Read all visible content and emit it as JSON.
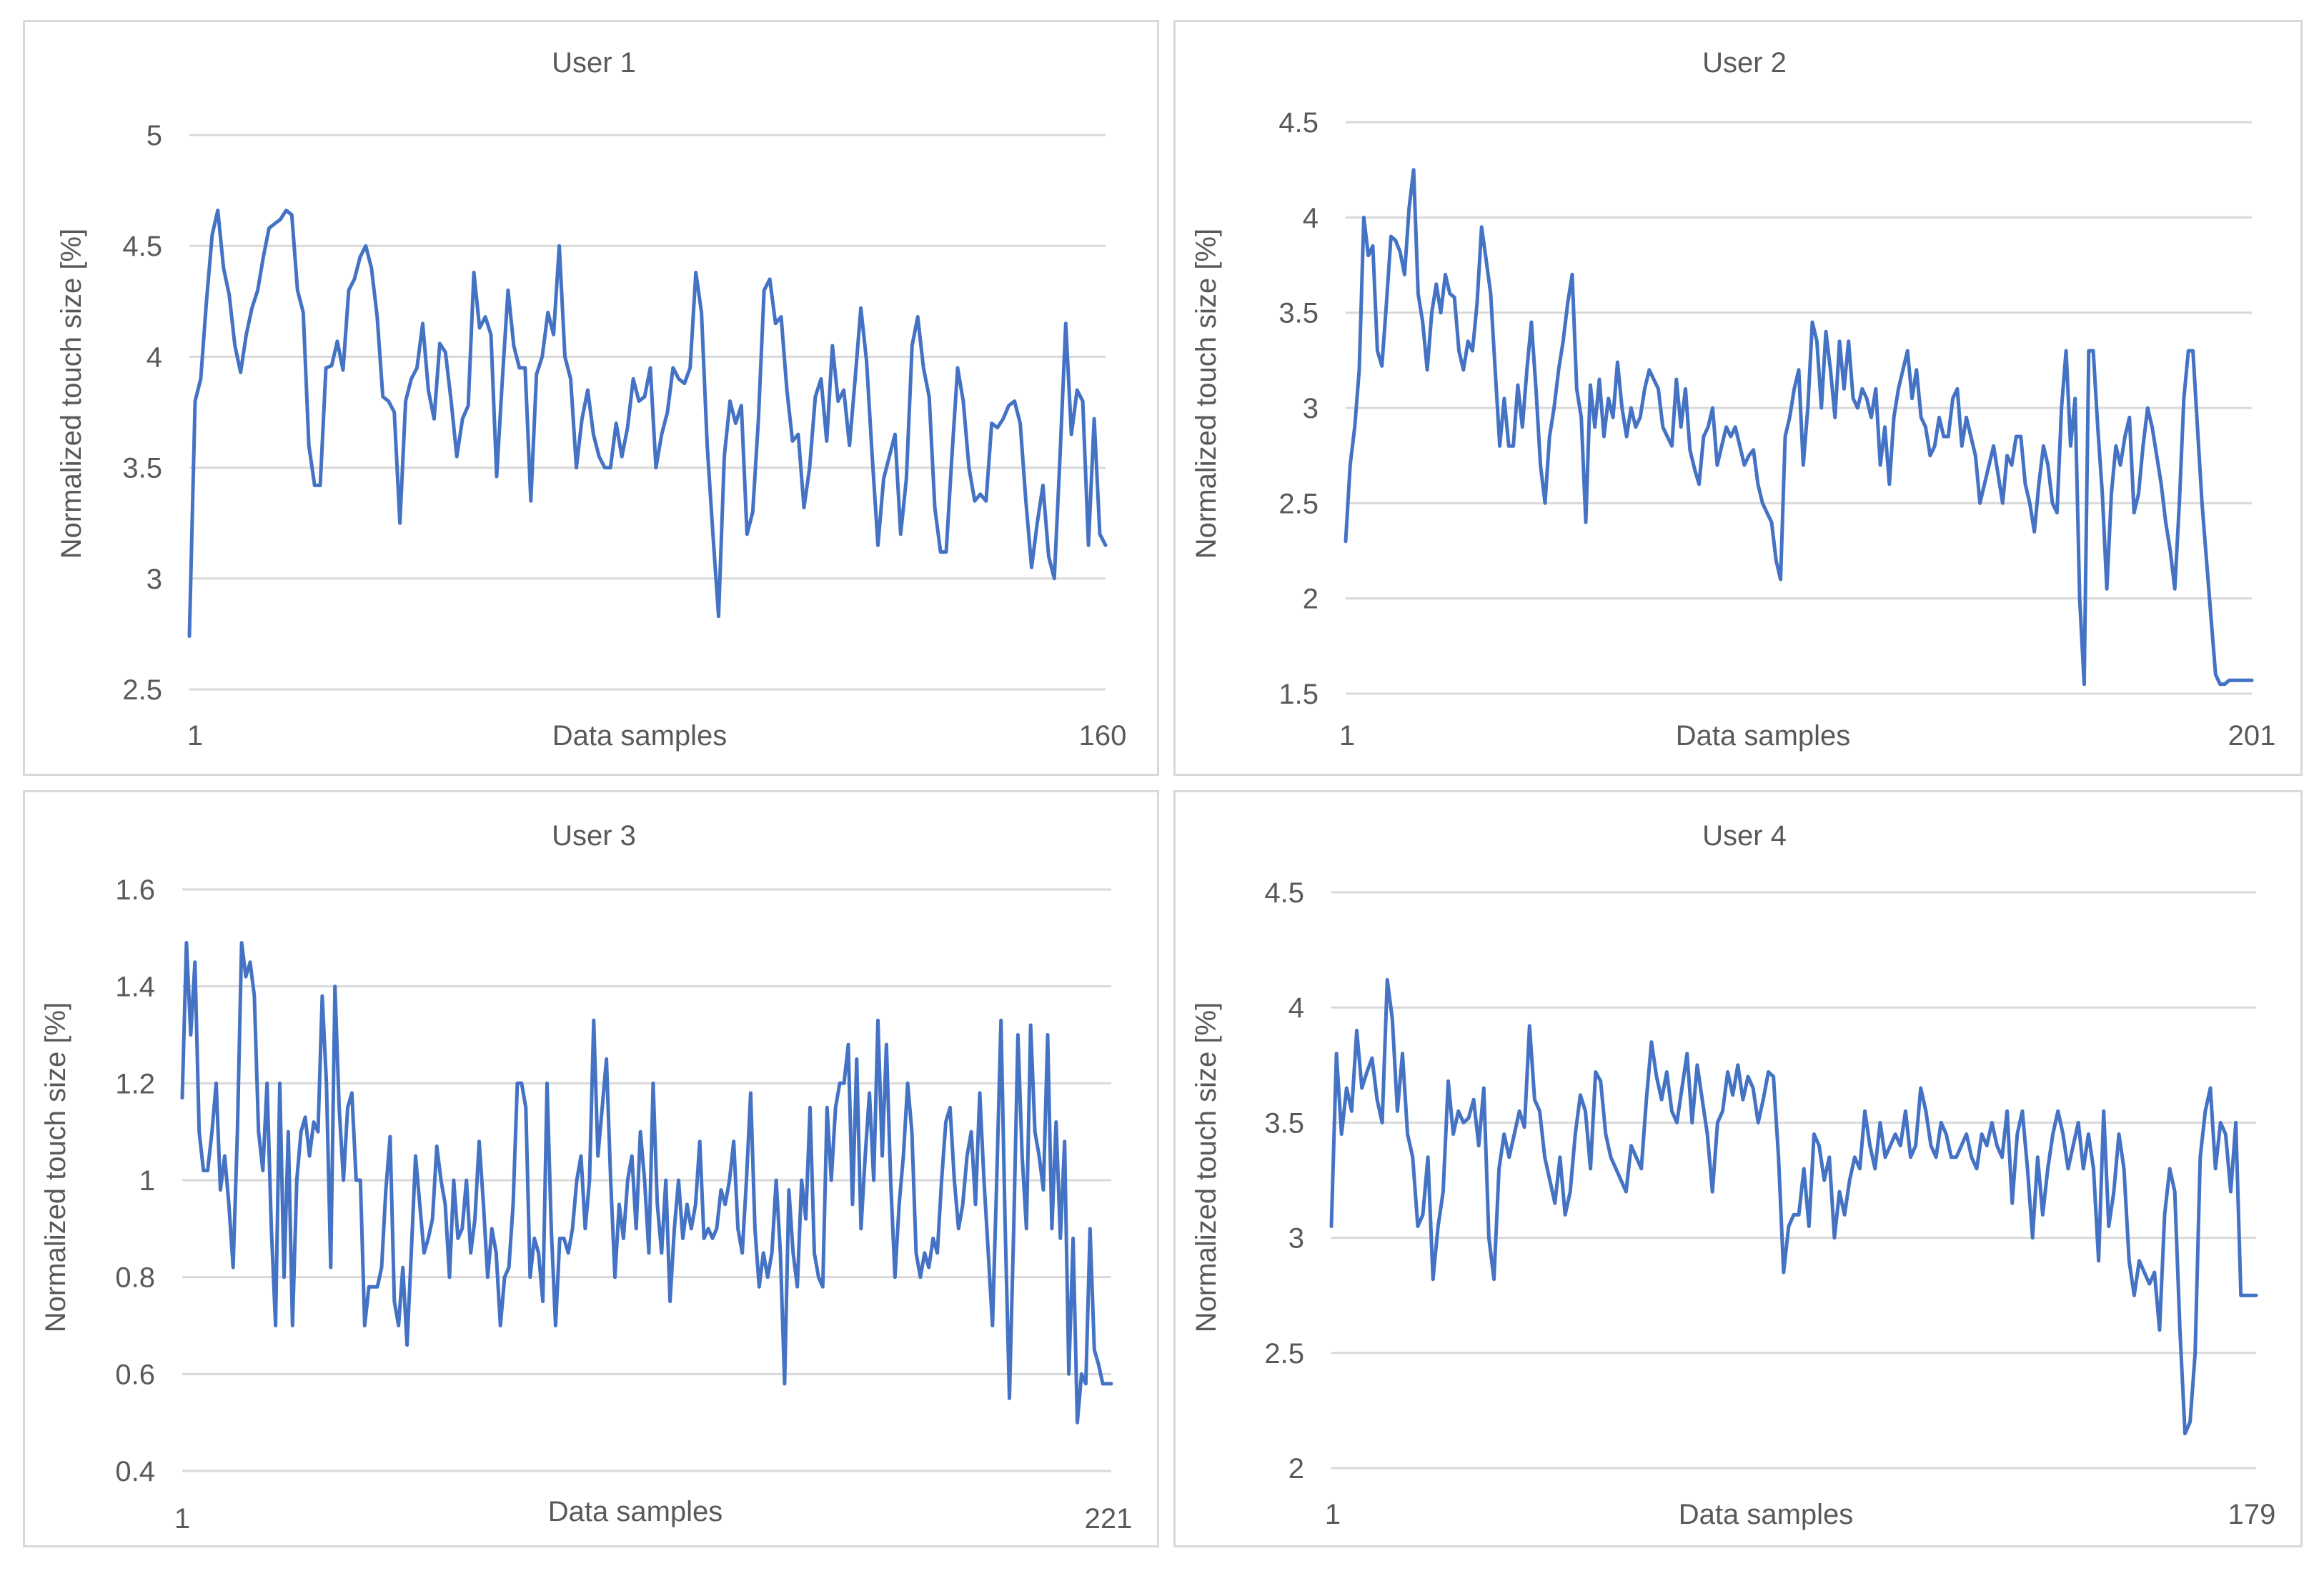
{
  "colors": {
    "series": "#4472c4",
    "grid": "#d9d9d9",
    "text": "#595959"
  },
  "chart_data": [
    {
      "type": "line",
      "title": "User 1",
      "xlabel": "Data samples",
      "ylabel": "Normalized touch size  [%]",
      "ylim": [
        2.5,
        5
      ],
      "yticks": [
        "2.5",
        "3",
        "3.5",
        "4",
        "4.5",
        "5"
      ],
      "xticks": [
        "1",
        "160"
      ],
      "x_range": [
        1,
        160
      ],
      "grid": true,
      "series": [
        {
          "name": "User 1",
          "values": [
            2.74,
            3.8,
            3.9,
            4.25,
            4.55,
            4.66,
            4.4,
            4.28,
            4.05,
            3.93,
            4.1,
            4.22,
            4.3,
            4.45,
            4.58,
            4.6,
            4.62,
            4.66,
            4.64,
            4.3,
            4.2,
            3.6,
            3.42,
            3.42,
            3.95,
            3.96,
            4.07,
            3.94,
            4.3,
            4.35,
            4.45,
            4.5,
            4.4,
            4.18,
            3.82,
            3.8,
            3.75,
            3.25,
            3.8,
            3.9,
            3.95,
            4.15,
            3.85,
            3.72,
            4.06,
            4.02,
            3.8,
            3.55,
            3.72,
            3.78,
            4.38,
            4.13,
            4.18,
            4.1,
            3.46,
            3.9,
            4.3,
            4.05,
            3.95,
            3.95,
            3.35,
            3.92,
            4.0,
            4.2,
            4.1,
            4.5,
            4.0,
            3.9,
            3.5,
            3.72,
            3.85,
            3.65,
            3.55,
            3.5,
            3.5,
            3.7,
            3.55,
            3.68,
            3.9,
            3.8,
            3.82,
            3.95,
            3.5,
            3.65,
            3.75,
            3.95,
            3.9,
            3.88,
            3.95,
            4.38,
            4.2,
            3.6,
            3.2,
            2.83,
            3.55,
            3.8,
            3.7,
            3.78,
            3.2,
            3.3,
            3.72,
            4.3,
            4.35,
            4.15,
            4.18,
            3.85,
            3.62,
            3.65,
            3.32,
            3.5,
            3.82,
            3.9,
            3.62,
            4.05,
            3.8,
            3.85,
            3.6,
            3.9,
            4.22,
            3.98,
            3.55,
            3.15,
            3.45,
            3.55,
            3.65,
            3.2,
            3.45,
            4.05,
            4.18,
            3.95,
            3.82,
            3.32,
            3.12,
            3.12,
            3.55,
            3.95,
            3.8,
            3.5,
            3.35,
            3.38,
            3.35,
            3.7,
            3.68,
            3.72,
            3.78,
            3.8,
            3.7,
            3.35,
            3.05,
            3.25,
            3.42,
            3.1,
            3.0,
            3.55,
            4.15,
            3.65,
            3.85,
            3.8,
            3.15,
            3.72,
            3.2,
            3.15
          ]
        }
      ]
    },
    {
      "type": "line",
      "title": "User 2",
      "xlabel": "Data samples",
      "ylabel": "Normalized touch size  [%]",
      "ylim": [
        1.5,
        4.5
      ],
      "yticks": [
        "1.5",
        "2",
        "2.5",
        "3",
        "3.5",
        "4",
        "4.5"
      ],
      "xticks": [
        "1",
        "201"
      ],
      "x_range": [
        1,
        201
      ],
      "grid": true,
      "series": [
        {
          "name": "User 2",
          "values": [
            2.3,
            2.7,
            2.9,
            3.2,
            4.0,
            3.8,
            3.85,
            3.3,
            3.22,
            3.55,
            3.9,
            3.88,
            3.82,
            3.7,
            4.05,
            4.25,
            3.6,
            3.45,
            3.2,
            3.5,
            3.65,
            3.5,
            3.7,
            3.6,
            3.58,
            3.3,
            3.2,
            3.35,
            3.3,
            3.55,
            3.95,
            3.78,
            3.6,
            3.2,
            2.8,
            3.05,
            2.8,
            2.8,
            3.12,
            2.9,
            3.2,
            3.45,
            3.1,
            2.7,
            2.5,
            2.85,
            3.0,
            3.2,
            3.35,
            3.55,
            3.7,
            3.1,
            2.95,
            2.4,
            3.12,
            2.9,
            3.15,
            2.85,
            3.05,
            2.95,
            3.24,
            3.0,
            2.85,
            3.0,
            2.9,
            2.95,
            3.1,
            3.2,
            3.15,
            3.1,
            2.9,
            2.85,
            2.8,
            3.15,
            2.9,
            3.1,
            2.78,
            2.68,
            2.6,
            2.85,
            2.9,
            3.0,
            2.7,
            2.8,
            2.9,
            2.85,
            2.9,
            2.8,
            2.7,
            2.75,
            2.78,
            2.6,
            2.5,
            2.45,
            2.4,
            2.2,
            2.1,
            2.85,
            2.95,
            3.1,
            3.2,
            2.7,
            3.0,
            3.45,
            3.35,
            3.0,
            3.4,
            3.2,
            2.95,
            3.35,
            3.1,
            3.35,
            3.05,
            3.0,
            3.1,
            3.05,
            2.95,
            3.1,
            2.7,
            2.9,
            2.6,
            2.95,
            3.1,
            3.2,
            3.3,
            3.05,
            3.2,
            2.95,
            2.9,
            2.75,
            2.8,
            2.95,
            2.85,
            2.85,
            3.05,
            3.1,
            2.8,
            2.95,
            2.85,
            2.75,
            2.5,
            2.6,
            2.7,
            2.8,
            2.65,
            2.5,
            2.75,
            2.7,
            2.85,
            2.85,
            2.6,
            2.5,
            2.35,
            2.6,
            2.8,
            2.7,
            2.5,
            2.45,
            3.0,
            3.3,
            2.8,
            3.05,
            2.0,
            1.55,
            3.3,
            3.3,
            2.9,
            2.55,
            2.05,
            2.55,
            2.8,
            2.7,
            2.85,
            2.95,
            2.45,
            2.55,
            2.8,
            3.0,
            2.9,
            2.75,
            2.6,
            2.4,
            2.25,
            2.05,
            2.5,
            3.05,
            3.3,
            3.3,
            2.9,
            2.5,
            2.2,
            1.9,
            1.6,
            1.55,
            1.55,
            1.57,
            1.57,
            1.57,
            1.57,
            1.57,
            1.57
          ]
        }
      ]
    },
    {
      "type": "line",
      "title": "User 3",
      "xlabel": "Data samples",
      "ylabel": "Normalized touch size  [%]",
      "ylim": [
        0.4,
        1.6
      ],
      "yticks": [
        "0.4",
        "0.6",
        "0.8",
        "1",
        "1.2",
        "1.4",
        "1.6"
      ],
      "xticks": [
        "1",
        "221"
      ],
      "x_range": [
        1,
        221
      ],
      "grid": true,
      "series": [
        {
          "name": "User 3",
          "values": [
            1.17,
            1.49,
            1.3,
            1.45,
            1.1,
            1.02,
            1.02,
            1.1,
            1.2,
            0.98,
            1.05,
            0.95,
            0.82,
            1.1,
            1.49,
            1.42,
            1.45,
            1.38,
            1.1,
            1.02,
            1.2,
            0.9,
            0.7,
            1.2,
            0.8,
            1.1,
            0.7,
            1.0,
            1.1,
            1.13,
            1.05,
            1.12,
            1.1,
            1.38,
            1.2,
            0.82,
            1.4,
            1.15,
            1.0,
            1.15,
            1.18,
            1.0,
            1.0,
            0.7,
            0.78,
            0.78,
            0.78,
            0.82,
            0.98,
            1.09,
            0.75,
            0.7,
            0.82,
            0.66,
            0.85,
            1.05,
            0.95,
            0.85,
            0.88,
            0.92,
            1.07,
            1.0,
            0.95,
            0.8,
            1.0,
            0.88,
            0.9,
            1.0,
            0.85,
            0.92,
            1.08,
            0.95,
            0.8,
            0.9,
            0.85,
            0.7,
            0.8,
            0.82,
            0.95,
            1.2,
            1.2,
            1.15,
            0.8,
            0.88,
            0.85,
            0.75,
            1.2,
            0.9,
            0.7,
            0.88,
            0.88,
            0.85,
            0.9,
            1.0,
            1.05,
            0.9,
            1.0,
            1.33,
            1.05,
            1.15,
            1.25,
            1.0,
            0.8,
            0.95,
            0.88,
            1.0,
            1.05,
            0.9,
            1.1,
            1.0,
            0.85,
            1.2,
            0.95,
            0.85,
            1.0,
            0.75,
            0.9,
            1.0,
            0.88,
            0.95,
            0.9,
            0.95,
            1.08,
            0.88,
            0.9,
            0.88,
            0.9,
            0.98,
            0.95,
            1.0,
            1.08,
            0.9,
            0.85,
            1.0,
            1.18,
            0.9,
            0.78,
            0.85,
            0.8,
            0.85,
            1.0,
            0.85,
            0.58,
            0.98,
            0.85,
            0.78,
            1.0,
            0.92,
            1.15,
            0.85,
            0.8,
            0.78,
            1.15,
            1.0,
            1.15,
            1.2,
            1.2,
            1.28,
            0.95,
            1.25,
            0.9,
            1.05,
            1.18,
            1.0,
            1.33,
            1.05,
            1.28,
            1.0,
            0.8,
            0.95,
            1.05,
            1.2,
            1.1,
            0.85,
            0.8,
            0.85,
            0.82,
            0.88,
            0.85,
            1.0,
            1.12,
            1.15,
            1.0,
            0.9,
            0.95,
            1.05,
            1.1,
            0.95,
            1.18,
            1.0,
            0.85,
            0.7,
            1.0,
            1.33,
            0.9,
            0.55,
            0.9,
            1.3,
            1.05,
            0.9,
            1.32,
            1.1,
            1.05,
            0.98,
            1.3,
            0.9,
            1.12,
            0.88,
            1.08,
            0.6,
            0.88,
            0.5,
            0.6,
            0.58,
            0.9,
            0.65,
            0.62,
            0.58,
            0.58,
            0.58
          ]
        }
      ]
    },
    {
      "type": "line",
      "title": "User 4",
      "xlabel": "Data samples",
      "ylabel": "Normalized touch size  [%]",
      "ylim": [
        2,
        4.5
      ],
      "yticks": [
        "2",
        "2.5",
        "3",
        "3.5",
        "4",
        "4.5"
      ],
      "xticks": [
        "1",
        "179"
      ],
      "x_range": [
        1,
        179
      ],
      "grid": true,
      "series": [
        {
          "name": "User 4",
          "values": [
            3.05,
            3.8,
            3.45,
            3.65,
            3.55,
            3.9,
            3.65,
            3.72,
            3.78,
            3.6,
            3.5,
            4.12,
            3.95,
            3.55,
            3.8,
            3.45,
            3.35,
            3.05,
            3.1,
            3.35,
            2.82,
            3.05,
            3.2,
            3.68,
            3.45,
            3.55,
            3.5,
            3.52,
            3.6,
            3.4,
            3.65,
            3.0,
            2.82,
            3.3,
            3.45,
            3.35,
            3.45,
            3.55,
            3.48,
            3.92,
            3.6,
            3.55,
            3.35,
            3.25,
            3.15,
            3.35,
            3.1,
            3.2,
            3.45,
            3.62,
            3.55,
            3.3,
            3.72,
            3.68,
            3.45,
            3.35,
            3.3,
            3.25,
            3.2,
            3.4,
            3.35,
            3.3,
            3.6,
            3.85,
            3.7,
            3.6,
            3.72,
            3.55,
            3.5,
            3.65,
            3.8,
            3.5,
            3.75,
            3.6,
            3.45,
            3.2,
            3.5,
            3.55,
            3.72,
            3.62,
            3.75,
            3.6,
            3.7,
            3.65,
            3.5,
            3.6,
            3.72,
            3.7,
            3.35,
            2.85,
            3.05,
            3.1,
            3.1,
            3.3,
            3.05,
            3.45,
            3.4,
            3.25,
            3.35,
            3.0,
            3.2,
            3.1,
            3.25,
            3.35,
            3.3,
            3.55,
            3.4,
            3.3,
            3.5,
            3.35,
            3.4,
            3.45,
            3.4,
            3.55,
            3.35,
            3.4,
            3.65,
            3.55,
            3.4,
            3.35,
            3.5,
            3.45,
            3.35,
            3.35,
            3.4,
            3.45,
            3.35,
            3.3,
            3.45,
            3.4,
            3.5,
            3.4,
            3.35,
            3.55,
            3.15,
            3.45,
            3.55,
            3.3,
            3.0,
            3.35,
            3.1,
            3.3,
            3.45,
            3.55,
            3.45,
            3.3,
            3.4,
            3.5,
            3.3,
            3.45,
            3.3,
            2.9,
            3.55,
            3.05,
            3.2,
            3.45,
            3.3,
            2.9,
            2.75,
            2.9,
            2.85,
            2.8,
            2.85,
            2.6,
            3.1,
            3.3,
            3.2,
            2.6,
            2.15,
            2.2,
            2.5,
            3.35,
            3.55,
            3.65,
            3.3,
            3.5,
            3.45,
            3.2,
            3.5,
            2.75,
            2.75,
            2.75,
            2.75
          ]
        }
      ]
    }
  ]
}
